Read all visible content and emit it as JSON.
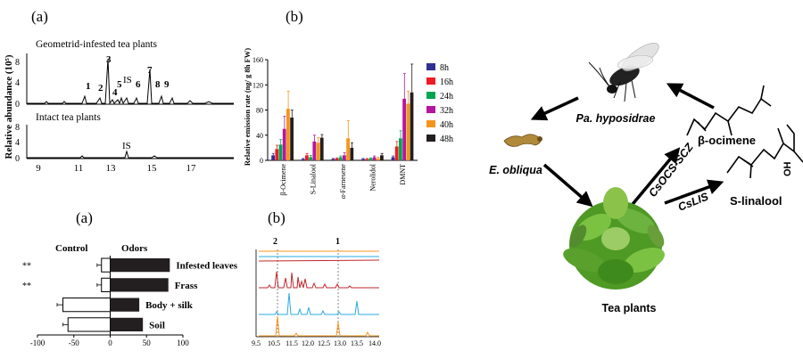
{
  "panel_top_left": {
    "label": "(a)",
    "title_infested": "Geometrid-infested tea plants",
    "title_intact": "Intact tea plants",
    "ylabel": "Relative abundance (10⁵)",
    "yticks_infested": [
      "8",
      "4",
      "0"
    ],
    "yticks_intact": [
      "8",
      "4",
      "0"
    ],
    "xticks": [
      "9",
      "11",
      "13",
      "15",
      "17"
    ],
    "peak_labels": [
      "1",
      "2",
      "3",
      "4",
      "5",
      "IS",
      "6",
      "7",
      "8",
      "9"
    ],
    "intact_peak_label": "IS"
  },
  "chart_data": [
    {
      "type": "bar",
      "title": "(b)",
      "xlabel": "",
      "ylabel": "Relative emission rate (ng/ g 8h FW)",
      "ylim": [
        0,
        160
      ],
      "yticks": [
        "0",
        "40",
        "80",
        "120",
        "160"
      ],
      "categories": [
        "β-Ocimene",
        "S-Linalool",
        "α-Farnesene",
        "Nerolidol",
        "DMNT"
      ],
      "series": [
        {
          "name": "8h",
          "color": "#2e3192",
          "values": [
            8,
            2,
            2,
            2,
            5
          ]
        },
        {
          "name": "16h",
          "color": "#ed1c24",
          "values": [
            18,
            8,
            3,
            2,
            22
          ]
        },
        {
          "name": "24h",
          "color": "#00a651",
          "values": [
            25,
            5,
            5,
            3,
            35
          ]
        },
        {
          "name": "32h",
          "color": "#b5179e",
          "values": [
            50,
            30,
            8,
            5,
            98
          ]
        },
        {
          "name": "40h",
          "color": "#f7941d",
          "values": [
            82,
            28,
            35,
            3,
            90
          ]
        },
        {
          "name": "48h",
          "color": "#231f20",
          "values": [
            68,
            36,
            20,
            8,
            108
          ]
        }
      ],
      "errors": [
        [
          3,
          1,
          1,
          1,
          2
        ],
        [
          6,
          3,
          1,
          1,
          8
        ],
        [
          8,
          3,
          2,
          1,
          12
        ],
        [
          20,
          10,
          4,
          2,
          40
        ],
        [
          28,
          8,
          28,
          2,
          20
        ],
        [
          12,
          5,
          8,
          3,
          45
        ]
      ]
    },
    {
      "type": "bar",
      "title": "(a)",
      "orientation": "horizontal",
      "xlim": [
        -100,
        100
      ],
      "xticks": [
        "-100",
        "-50",
        "0",
        "50",
        "100"
      ],
      "left_header": "Control",
      "right_header": "Odors",
      "categories": [
        "Infested leaves",
        "Frass",
        "Body + silk",
        "Soil"
      ],
      "significance": [
        "**",
        "**",
        "",
        ""
      ],
      "control_values": [
        -12,
        -12,
        -65,
        -58
      ],
      "odor_values": [
        82,
        80,
        40,
        45
      ],
      "error": [
        6,
        6,
        8,
        7
      ]
    }
  ],
  "panel_bottom_b": {
    "label": "(b)",
    "peak_labels": [
      "2",
      "1"
    ],
    "xticks": [
      "9.5",
      "10.5",
      "11.5",
      "12.0",
      "12.5",
      "13.0",
      "13.5",
      "14.0"
    ]
  },
  "diagram": {
    "parasitoid": "Pa. hyposidrae",
    "herbivore": "E. obliqua",
    "plant": "Tea plants",
    "enzyme_ocimene": "CsOCS-SCZ",
    "enzyme_linalool": "CsLIS",
    "compound_ocimene": "β-ocimene",
    "compound_linalool": "S-linalool",
    "oh_label": "OH"
  }
}
